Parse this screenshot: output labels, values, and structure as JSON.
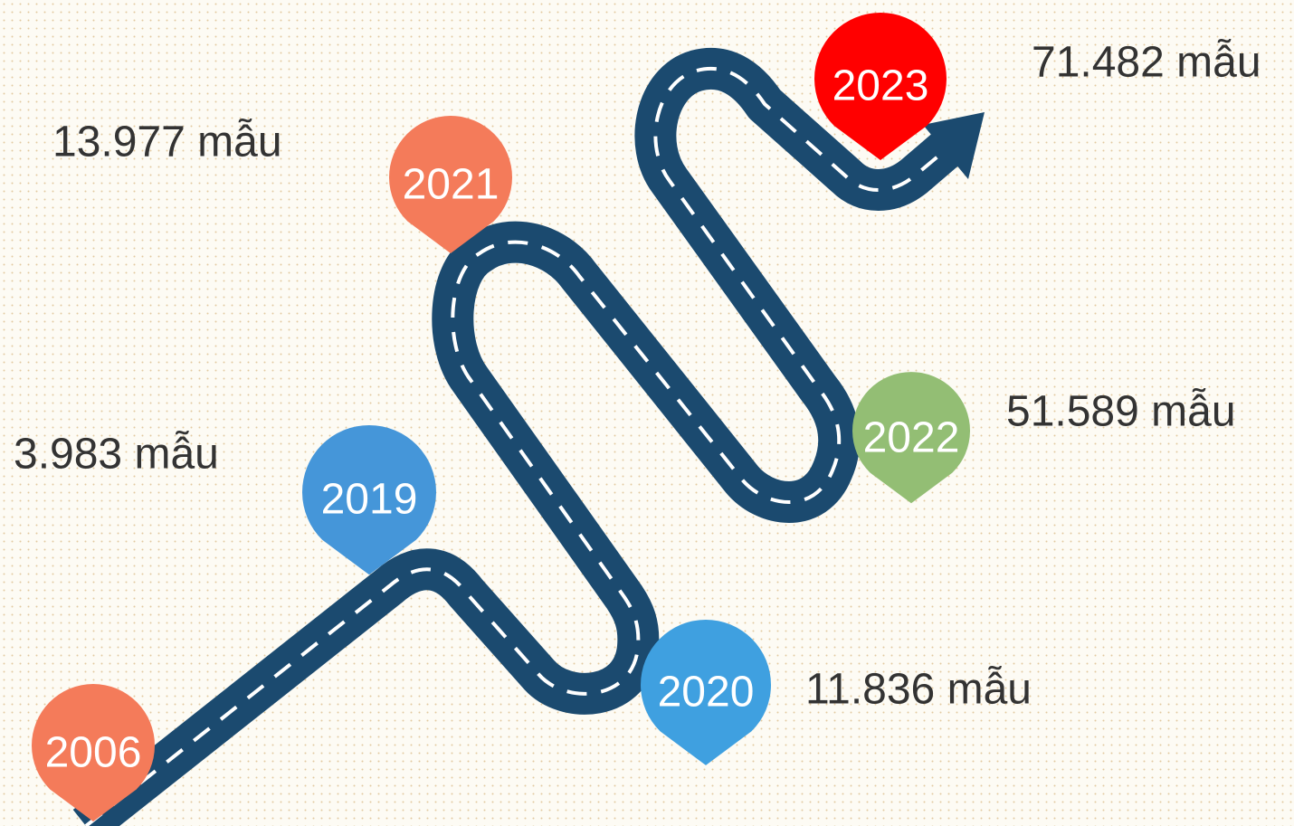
{
  "years": [
    "2006",
    "2019",
    "2020",
    "2021",
    "2022",
    "2023"
  ],
  "counts": [
    "13.977 mẫu",
    "3.983 mẫu",
    "11.836 mẫu",
    "51.589 mẫu",
    "71.482 mẫu"
  ]
}
